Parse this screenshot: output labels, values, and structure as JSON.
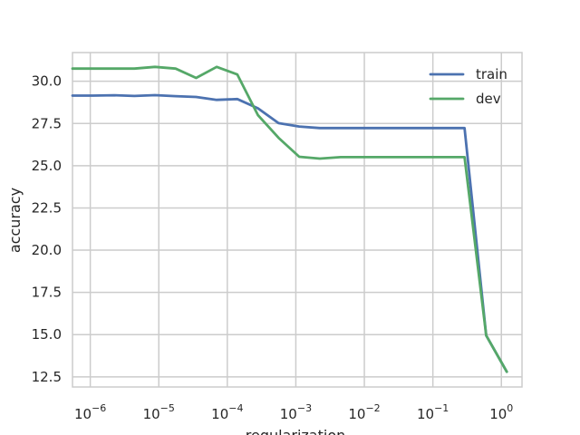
{
  "chart_data": {
    "type": "line",
    "title": "",
    "xlabel": "regularization",
    "ylabel": "accuracy",
    "xscale": "log",
    "xlim": [
      5.5e-07,
      2.0
    ],
    "ylim": [
      11.9,
      31.7
    ],
    "grid": true,
    "legend_position": "top-right",
    "x_ticks": [
      {
        "value": 1e-06,
        "base": "10",
        "exp": "−6"
      },
      {
        "value": 1e-05,
        "base": "10",
        "exp": "−5"
      },
      {
        "value": 0.0001,
        "base": "10",
        "exp": "−4"
      },
      {
        "value": 0.001,
        "base": "10",
        "exp": "−3"
      },
      {
        "value": 0.01,
        "base": "10",
        "exp": "−2"
      },
      {
        "value": 0.1,
        "base": "10",
        "exp": "−1"
      },
      {
        "value": 1,
        "base": "10",
        "exp": "0"
      }
    ],
    "y_ticks": [
      {
        "value": 12.5,
        "label": "12.5"
      },
      {
        "value": 15.0,
        "label": "15.0"
      },
      {
        "value": 17.5,
        "label": "17.5"
      },
      {
        "value": 20.0,
        "label": "20.0"
      },
      {
        "value": 22.5,
        "label": "22.5"
      },
      {
        "value": 25.0,
        "label": "25.0"
      },
      {
        "value": 27.5,
        "label": "27.5"
      },
      {
        "value": 30.0,
        "label": "30.0"
      }
    ],
    "x": [
      5.5e-07,
      1.1e-06,
      2.2e-06,
      4.4e-06,
      8.8e-06,
      1.76e-05,
      3.5e-05,
      7e-05,
      0.00014,
      0.00028,
      0.00056,
      0.00112,
      0.00224,
      0.0045,
      0.009,
      0.018,
      0.036,
      0.072,
      0.144,
      0.29,
      0.6,
      1.2
    ],
    "series": [
      {
        "name": "train",
        "color": "#4c72b0",
        "values": [
          29.15,
          29.15,
          29.17,
          29.13,
          29.18,
          29.12,
          29.07,
          28.9,
          28.95,
          28.4,
          27.52,
          27.32,
          27.23,
          27.23,
          27.23,
          27.23,
          27.23,
          27.23,
          27.23,
          27.23,
          14.95,
          12.8
        ]
      },
      {
        "name": "dev",
        "color": "#55a868",
        "values": [
          30.75,
          30.75,
          30.75,
          30.75,
          30.85,
          30.75,
          30.2,
          30.85,
          30.4,
          28.0,
          26.65,
          25.53,
          25.42,
          25.51,
          25.51,
          25.51,
          25.51,
          25.51,
          25.51,
          25.51,
          14.95,
          12.8
        ]
      }
    ]
  }
}
